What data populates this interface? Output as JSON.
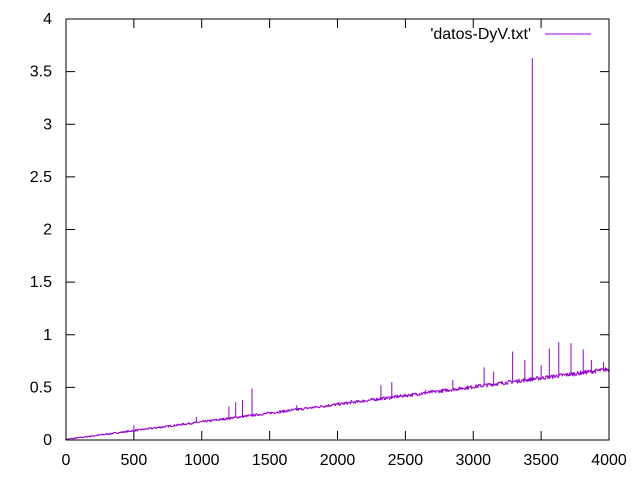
{
  "chart_data": {
    "type": "line",
    "title": "",
    "xlabel": "",
    "ylabel": "",
    "xlim": [
      0,
      4000
    ],
    "ylim": [
      0,
      4
    ],
    "grid": false,
    "legend_placement": "top-right",
    "x_tick_labels": [
      "0",
      "500",
      "1000",
      "1500",
      "2000",
      "2500",
      "3000",
      "3500",
      "4000"
    ],
    "y_tick_labels": [
      "0",
      "0.5",
      "1",
      "1.5",
      "2",
      "2.5",
      "3",
      "3.5",
      "4"
    ],
    "series": [
      {
        "name": "'datos-DyV.txt'",
        "color": "#9400d3",
        "trend": {
          "x": [
            0,
            4000
          ],
          "y": [
            0.005,
            0.67
          ]
        },
        "noise_band": 0.03,
        "x": [
          0,
          250,
          500,
          750,
          1000,
          1250,
          1500,
          1750,
          2000,
          2250,
          2500,
          2750,
          3000,
          3250,
          3500,
          3750,
          4000
        ],
        "y": [
          0.005,
          0.05,
          0.09,
          0.13,
          0.17,
          0.21,
          0.25,
          0.29,
          0.33,
          0.38,
          0.42,
          0.46,
          0.5,
          0.55,
          0.59,
          0.63,
          0.67
        ],
        "spikes": [
          {
            "x": 500,
            "y": 0.14
          },
          {
            "x": 960,
            "y": 0.22
          },
          {
            "x": 1200,
            "y": 0.32
          },
          {
            "x": 1250,
            "y": 0.36
          },
          {
            "x": 1300,
            "y": 0.38
          },
          {
            "x": 1370,
            "y": 0.49
          },
          {
            "x": 1700,
            "y": 0.33
          },
          {
            "x": 2100,
            "y": 0.38
          },
          {
            "x": 2320,
            "y": 0.52
          },
          {
            "x": 2400,
            "y": 0.55
          },
          {
            "x": 2650,
            "y": 0.48
          },
          {
            "x": 2850,
            "y": 0.57
          },
          {
            "x": 3080,
            "y": 0.69
          },
          {
            "x": 3150,
            "y": 0.65
          },
          {
            "x": 3290,
            "y": 0.84
          },
          {
            "x": 3380,
            "y": 0.76
          },
          {
            "x": 3435,
            "y": 3.63
          },
          {
            "x": 3500,
            "y": 0.71
          },
          {
            "x": 3560,
            "y": 0.87
          },
          {
            "x": 3630,
            "y": 0.93
          },
          {
            "x": 3720,
            "y": 0.92
          },
          {
            "x": 3810,
            "y": 0.86
          },
          {
            "x": 3870,
            "y": 0.76
          },
          {
            "x": 3960,
            "y": 0.74
          }
        ]
      }
    ]
  }
}
